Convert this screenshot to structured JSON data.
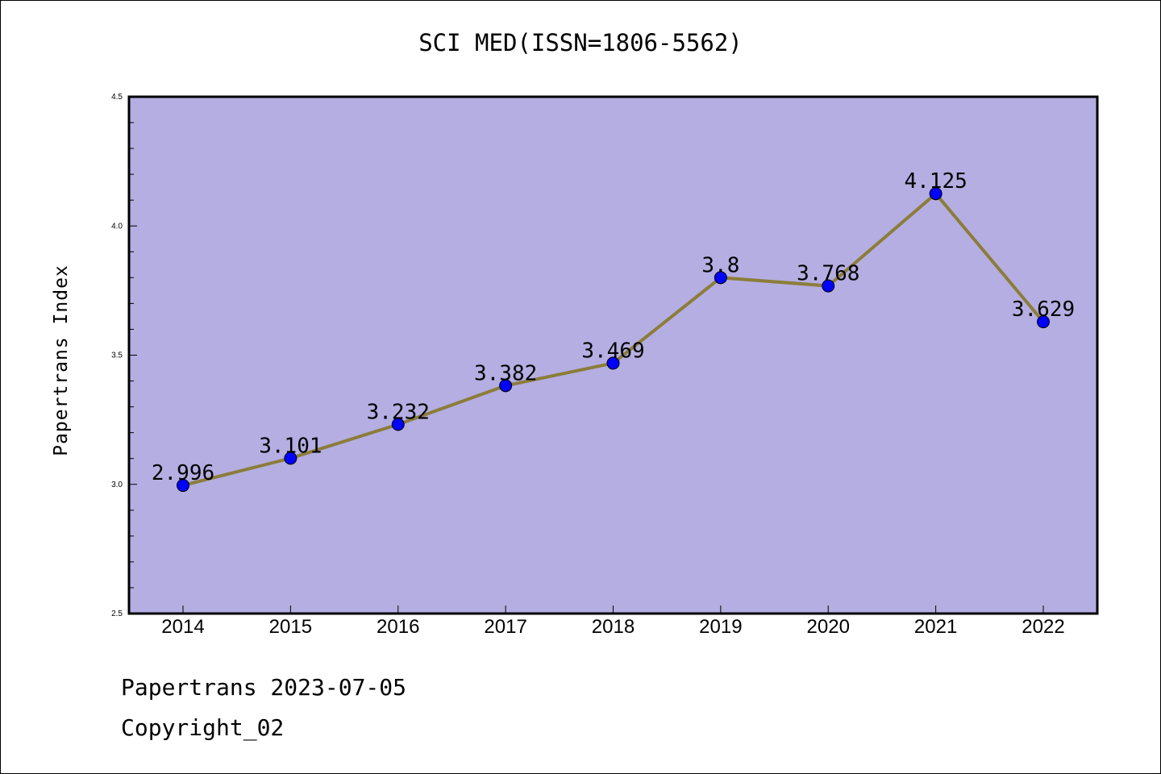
{
  "page": {
    "title": "SCI MED(ISSN=1806-5562)",
    "footer_line1": "Papertrans 2023-07-05",
    "footer_line2": "Copyright_02"
  },
  "chart_data": {
    "type": "line",
    "title": "SCI MED(ISSN=1806-5562)",
    "xlabel": "",
    "ylabel": "Papertrans Index",
    "categories": [
      "2014",
      "2015",
      "2016",
      "2017",
      "2018",
      "2019",
      "2020",
      "2021",
      "2022"
    ],
    "values": [
      2.996,
      3.101,
      3.232,
      3.382,
      3.469,
      3.8,
      3.768,
      4.125,
      3.629
    ],
    "data_labels": [
      "2.996",
      "3.101",
      "3.232",
      "3.382",
      "3.469",
      "3.8",
      "3.768",
      "4.125",
      "3.629"
    ],
    "ylim": [
      2.5,
      4.5
    ],
    "yticks": [
      "2.5",
      "3.0",
      "3.5",
      "4.0",
      "4.5"
    ],
    "grid": false,
    "colors": {
      "plot_background": "#b5aee2",
      "line": "#8b7d3a",
      "marker": "#0000ff"
    }
  }
}
